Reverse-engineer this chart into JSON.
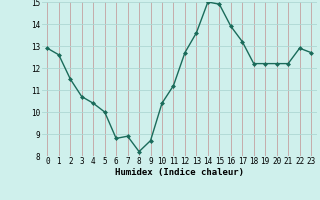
{
  "x": [
    0,
    1,
    2,
    3,
    4,
    5,
    6,
    7,
    8,
    9,
    10,
    11,
    12,
    13,
    14,
    15,
    16,
    17,
    18,
    19,
    20,
    21,
    22,
    23
  ],
  "y": [
    12.9,
    12.6,
    11.5,
    10.7,
    10.4,
    10.0,
    8.8,
    8.9,
    8.2,
    8.7,
    10.4,
    11.2,
    12.7,
    13.6,
    15.0,
    14.9,
    13.9,
    13.2,
    12.2,
    12.2,
    12.2,
    12.2,
    12.9,
    12.7
  ],
  "line_color": "#1a6b5a",
  "marker": "D",
  "marker_size": 2.0,
  "bg_color": "#cff0ec",
  "grid_color": "#aed8d3",
  "grid_color_major": "#c0a0a0",
  "xlabel": "Humidex (Indice chaleur)",
  "ylim": [
    8,
    15
  ],
  "xlim": [
    -0.5,
    23.5
  ],
  "yticks": [
    8,
    9,
    10,
    11,
    12,
    13,
    14,
    15
  ],
  "xticks": [
    0,
    1,
    2,
    3,
    4,
    5,
    6,
    7,
    8,
    9,
    10,
    11,
    12,
    13,
    14,
    15,
    16,
    17,
    18,
    19,
    20,
    21,
    22,
    23
  ],
  "xlabel_fontsize": 6.5,
  "tick_fontsize": 5.5,
  "line_width": 1.0
}
